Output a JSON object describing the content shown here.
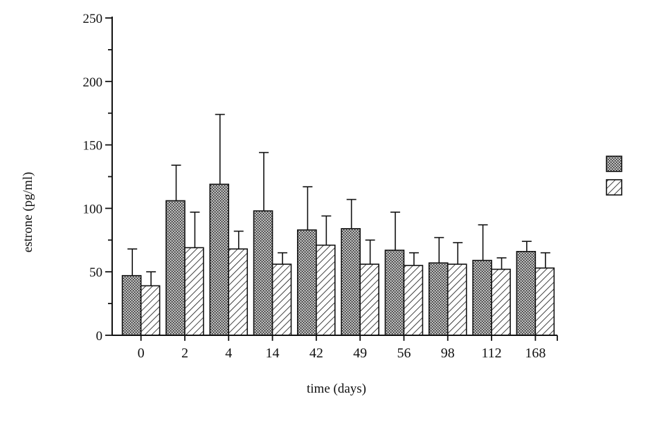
{
  "chart_data": {
    "type": "bar",
    "title": "",
    "xlabel": "time (days)",
    "ylabel": "estrone (pg/ml)",
    "ylim": [
      0,
      250
    ],
    "yticks": [
      0,
      50,
      100,
      150,
      200,
      250
    ],
    "grid": false,
    "legend_position": "right",
    "categories": [
      "0",
      "2",
      "4",
      "14",
      "42",
      "49",
      "56",
      "98",
      "112",
      "168"
    ],
    "series": [
      {
        "pattern": "stippled",
        "values": [
          47,
          106,
          119,
          98,
          83,
          84,
          67,
          57,
          59,
          66
        ],
        "error": [
          21,
          28,
          55,
          46,
          34,
          23,
          30,
          20,
          28,
          8
        ]
      },
      {
        "pattern": "hatched",
        "values": [
          39,
          69,
          68,
          56,
          71,
          56,
          55,
          56,
          52,
          53
        ],
        "error": [
          11,
          28,
          14,
          9,
          23,
          19,
          10,
          17,
          9,
          12
        ]
      }
    ]
  }
}
